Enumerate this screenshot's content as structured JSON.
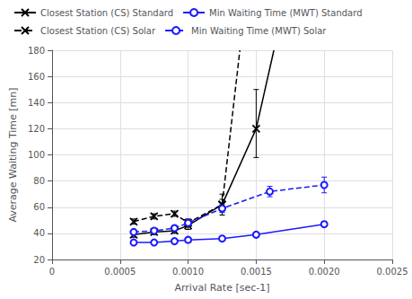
{
  "chart_data": {
    "type": "line",
    "title": "",
    "xlabel": "Arrival Rate [sec-1]",
    "ylabel": "Average Waiting Time [mn]",
    "xlim": [
      0,
      0.0025
    ],
    "ylim": [
      20,
      180
    ],
    "xticks": [
      0,
      0.0005,
      {
        "value": 0.001,
        "label": "0.0010"
      },
      0.0015,
      {
        "value": 0.002,
        "label": "0.0020"
      },
      0.0025
    ],
    "yticks": [
      20,
      40,
      60,
      80,
      100,
      120,
      140,
      160,
      180
    ],
    "grid": true,
    "legend": "upper left",
    "series": [
      {
        "name": "Closest Station (CS) Standard",
        "color": "#000000",
        "line_style": "solid",
        "marker": "x",
        "x": [
          0.0006,
          0.00075,
          0.0009,
          0.001,
          0.00125,
          0.0015
        ],
        "values": [
          39,
          41,
          42,
          46,
          62,
          120
        ],
        "yerr_lo": [
          2,
          2,
          2,
          3,
          8,
          22
        ],
        "yerr_hi": [
          2,
          2,
          2,
          3,
          8,
          30
        ],
        "extend_x": [
          0.0015,
          0.00163
        ],
        "extend_values": [
          120,
          180
        ]
      },
      {
        "name": "Min Waiting Time (MWT) Standard",
        "color": "#1a1aff",
        "line_style": "solid",
        "marker": "o",
        "x": [
          0.0006,
          0.00075,
          0.0009,
          0.001,
          0.00125,
          0.0015,
          0.002
        ],
        "values": [
          33,
          33,
          34,
          35,
          36,
          39,
          47
        ],
        "yerr": [
          1,
          1,
          1,
          1,
          1,
          1,
          2
        ]
      },
      {
        "name": "Closest Station (CS) Solar",
        "color": "#000000",
        "line_style": "dashed",
        "marker": "x",
        "x": [
          0.0006,
          0.00075,
          0.0009,
          0.001,
          0.00125
        ],
        "values": [
          49,
          53,
          55,
          48,
          62
        ],
        "yerr": [
          2,
          2,
          2,
          3,
          4
        ],
        "extend_x": [
          0.00125,
          0.00138
        ],
        "extend_values": [
          62,
          180
        ]
      },
      {
        "name": "Min Waiting Time (MWT) Solar",
        "color": "#1a1aff",
        "line_style": "dashed",
        "marker": "o",
        "x": [
          0.0006,
          0.00075,
          0.0009,
          0.001,
          0.00125,
          0.0016,
          0.002
        ],
        "values": [
          41,
          42,
          44,
          48,
          59,
          72,
          77
        ],
        "yerr": [
          1,
          1,
          2,
          2,
          3,
          4,
          6
        ]
      }
    ]
  }
}
